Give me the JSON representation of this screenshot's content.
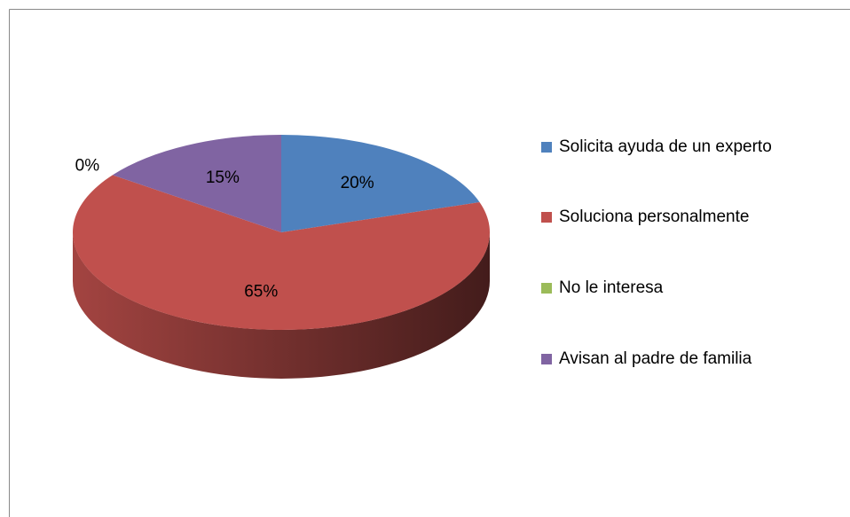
{
  "chart_data": {
    "type": "pie",
    "categories": [
      "Solicita ayuda de un experto",
      "Soluciona personalmente",
      "No le interesa",
      "Avisan al padre de familia"
    ],
    "values": [
      20,
      65,
      0,
      15
    ],
    "value_labels": [
      "20%",
      "65%",
      "0%",
      "15%"
    ],
    "colors": [
      "#4f81bd",
      "#c0504d",
      "#9bbb59",
      "#8064a2"
    ],
    "legend": "right"
  }
}
